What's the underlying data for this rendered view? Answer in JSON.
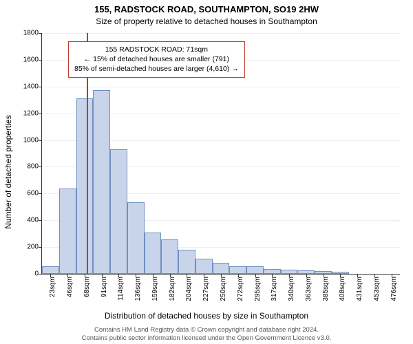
{
  "title": "155, RADSTOCK ROAD, SOUTHAMPTON, SO19 2HW",
  "subtitle": "Size of property relative to detached houses in Southampton",
  "ylabel": "Number of detached properties",
  "xlabel": "Distribution of detached houses by size in Southampton",
  "footer_line1": "Contains HM Land Registry data © Crown copyright and database right 2024.",
  "footer_line2": "Contains public sector information licensed under the Open Government Licence v3.0.",
  "chart": {
    "type": "histogram",
    "ylim": [
      0,
      1800
    ],
    "ytick_step": 200,
    "bar_fill": "#c8d4ea",
    "bar_stroke": "#6f8fc2",
    "bar_width_ratio": 1.0,
    "background": "#ffffff",
    "grid_color": "#e9edf2",
    "axis_color": "#333333",
    "vline_color": "#c0392b",
    "vline_x": 71,
    "categories": [
      "23sqm",
      "46sqm",
      "68sqm",
      "91sqm",
      "114sqm",
      "136sqm",
      "159sqm",
      "182sqm",
      "204sqm",
      "227sqm",
      "250sqm",
      "272sqm",
      "295sqm",
      "317sqm",
      "340sqm",
      "363sqm",
      "385sqm",
      "408sqm",
      "431sqm",
      "453sqm",
      "476sqm"
    ],
    "values": [
      55,
      640,
      1310,
      1375,
      930,
      535,
      310,
      255,
      180,
      115,
      80,
      55,
      55,
      35,
      30,
      25,
      20,
      15,
      0,
      0,
      0
    ],
    "annotation": {
      "border_color": "#c0392b",
      "lines": [
        "155 RADSTOCK ROAD: 71sqm",
        "← 15% of detached houses are smaller (791)",
        "85% of semi-detached houses are larger (4,610) →"
      ]
    }
  }
}
